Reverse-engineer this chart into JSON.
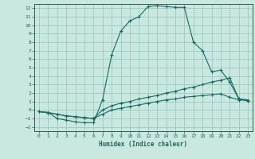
{
  "xlabel": "Humidex (Indice chaleur)",
  "bg_color": "#c8e8e0",
  "grid_color": "#a0c8c0",
  "line_color": "#1a6860",
  "spine_color": "#1a6860",
  "xlim": [
    -0.5,
    23.5
  ],
  "ylim": [
    -2.5,
    12.5
  ],
  "xticks": [
    0,
    1,
    2,
    3,
    4,
    5,
    6,
    7,
    8,
    9,
    10,
    11,
    12,
    13,
    14,
    15,
    16,
    17,
    18,
    19,
    20,
    21,
    22,
    23
  ],
  "yticks": [
    -2,
    -1,
    0,
    1,
    2,
    3,
    4,
    5,
    6,
    7,
    8,
    9,
    10,
    11,
    12
  ],
  "series": [
    {
      "x": [
        0,
        1,
        2,
        3,
        4,
        5,
        6,
        7,
        8,
        9,
        10,
        11,
        12,
        13,
        14,
        15,
        16,
        17,
        18,
        19,
        20,
        21,
        22,
        23
      ],
      "y": [
        -0.2,
        -0.3,
        -1.0,
        -1.2,
        -1.4,
        -1.5,
        -1.5,
        1.2,
        6.5,
        9.3,
        10.5,
        11.0,
        12.2,
        12.3,
        12.2,
        12.1,
        12.1,
        8.0,
        7.0,
        4.5,
        4.7,
        3.3,
        1.3,
        1.2
      ],
      "marker": "+"
    },
    {
      "x": [
        0,
        1,
        2,
        3,
        4,
        5,
        6,
        7,
        8,
        9,
        10,
        11,
        12,
        13,
        14,
        15,
        16,
        17,
        18,
        19,
        20,
        21,
        22,
        23
      ],
      "y": [
        -0.2,
        -0.3,
        -0.5,
        -0.7,
        -0.8,
        -0.9,
        -1.0,
        0.0,
        0.5,
        0.8,
        1.0,
        1.3,
        1.5,
        1.7,
        2.0,
        2.2,
        2.5,
        2.7,
        3.0,
        3.3,
        3.5,
        3.8,
        1.3,
        1.1
      ],
      "marker": "+"
    },
    {
      "x": [
        0,
        1,
        2,
        3,
        4,
        5,
        6,
        7,
        8,
        9,
        10,
        11,
        12,
        13,
        14,
        15,
        16,
        17,
        18,
        19,
        20,
        21,
        22,
        23
      ],
      "y": [
        -0.2,
        -0.3,
        -0.5,
        -0.7,
        -0.8,
        -0.9,
        -1.0,
        -0.5,
        0.0,
        0.2,
        0.4,
        0.6,
        0.8,
        1.0,
        1.2,
        1.3,
        1.5,
        1.6,
        1.7,
        1.8,
        1.9,
        1.5,
        1.2,
        1.1
      ],
      "marker": "+"
    }
  ]
}
